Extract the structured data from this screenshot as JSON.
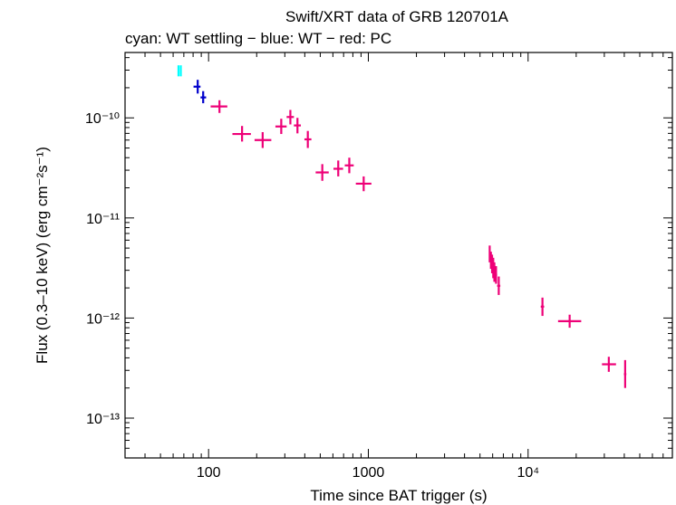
{
  "chart_data": {
    "type": "scatter",
    "title": "Swift/XRT data of GRB 120701A",
    "subtitle": "cyan: WT settling − blue: WT − red: PC",
    "xlabel": "Time since BAT trigger (s)",
    "ylabel": "Flux (0.3–10 keV) (erg cm⁻²s⁻¹)",
    "xscale": "log",
    "yscale": "log",
    "xlim": [
      30,
      80000
    ],
    "ylim": [
      4e-14,
      4.5e-10
    ],
    "x_ticks": [
      {
        "value": 100,
        "label": "100"
      },
      {
        "value": 1000,
        "label": "1000"
      },
      {
        "value": 10000,
        "label": "10⁴"
      }
    ],
    "y_ticks": [
      {
        "value": 1e-10,
        "label": "10⁻¹⁰"
      },
      {
        "value": 1e-11,
        "label": "10⁻¹¹"
      },
      {
        "value": 1e-12,
        "label": "10⁻¹²"
      },
      {
        "value": 1e-13,
        "label": "10⁻¹³"
      }
    ],
    "grid": false,
    "series": [
      {
        "name": "WT settling",
        "color": "#00ffff",
        "points": [
          {
            "x": 64.8,
            "xlo": 64.0,
            "xhi": 65.6,
            "y": 2.95e-10,
            "ylo": 2.6e-10,
            "yhi": 3.35e-10
          },
          {
            "x": 67.0,
            "xlo": 66.2,
            "xhi": 67.8,
            "y": 2.95e-10,
            "ylo": 2.6e-10,
            "yhi": 3.35e-10
          }
        ]
      },
      {
        "name": "WT",
        "color": "#0000cc",
        "points": [
          {
            "x": 85.5,
            "xlo": 80.5,
            "xhi": 89.0,
            "y": 2.05e-10,
            "ylo": 1.75e-10,
            "yhi": 2.4e-10
          },
          {
            "x": 92.5,
            "xlo": 89.0,
            "xhi": 96.5,
            "y": 1.6e-10,
            "ylo": 1.4e-10,
            "yhi": 1.85e-10
          }
        ]
      },
      {
        "name": "PC",
        "color": "#ee0077",
        "points": [
          {
            "x": 117,
            "xlo": 103,
            "xhi": 131,
            "y": 1.3e-10,
            "ylo": 1.12e-10,
            "yhi": 1.5e-10
          },
          {
            "x": 162,
            "xlo": 141,
            "xhi": 184,
            "y": 6.9e-11,
            "ylo": 5.8e-11,
            "yhi": 8.3e-11
          },
          {
            "x": 218,
            "xlo": 194,
            "xhi": 247,
            "y": 6e-11,
            "ylo": 5e-11,
            "yhi": 7.2e-11
          },
          {
            "x": 285,
            "xlo": 262,
            "xhi": 308,
            "y": 8.2e-11,
            "ylo": 6.9e-11,
            "yhi": 9.8e-11
          },
          {
            "x": 325,
            "xlo": 308,
            "xhi": 342,
            "y": 1.02e-10,
            "ylo": 8.6e-11,
            "yhi": 1.2e-10
          },
          {
            "x": 360,
            "xlo": 342,
            "xhi": 378,
            "y": 8.4e-11,
            "ylo": 7e-11,
            "yhi": 1e-10
          },
          {
            "x": 418,
            "xlo": 398,
            "xhi": 440,
            "y": 6.1e-11,
            "ylo": 5e-11,
            "yhi": 7.4e-11
          },
          {
            "x": 515,
            "xlo": 468,
            "xhi": 565,
            "y": 2.85e-11,
            "ylo": 2.35e-11,
            "yhi": 3.45e-11
          },
          {
            "x": 648,
            "xlo": 605,
            "xhi": 695,
            "y": 3.1e-11,
            "ylo": 2.6e-11,
            "yhi": 3.75e-11
          },
          {
            "x": 760,
            "xlo": 712,
            "xhi": 810,
            "y": 3.35e-11,
            "ylo": 2.8e-11,
            "yhi": 4e-11
          },
          {
            "x": 935,
            "xlo": 835,
            "xhi": 1045,
            "y": 2.2e-11,
            "ylo": 1.85e-11,
            "yhi": 2.6e-11
          },
          {
            "x": 5750,
            "xlo": 5700,
            "xhi": 5800,
            "y": 4.4e-12,
            "ylo": 3.6e-12,
            "yhi": 5.3e-12
          },
          {
            "x": 5850,
            "xlo": 5800,
            "xhi": 5900,
            "y": 3.8e-12,
            "ylo": 3.1e-12,
            "yhi": 4.6e-12
          },
          {
            "x": 5950,
            "xlo": 5900,
            "xhi": 6000,
            "y": 3.5e-12,
            "ylo": 2.8e-12,
            "yhi": 4.3e-12
          },
          {
            "x": 6050,
            "xlo": 6000,
            "xhi": 6100,
            "y": 3.2e-12,
            "ylo": 2.5e-12,
            "yhi": 4e-12
          },
          {
            "x": 6150,
            "xlo": 6100,
            "xhi": 6200,
            "y": 2.9e-12,
            "ylo": 2.3e-12,
            "yhi": 3.6e-12
          },
          {
            "x": 6300,
            "xlo": 6200,
            "xhi": 6400,
            "y": 2.7e-12,
            "ylo": 2.2e-12,
            "yhi": 3.3e-12
          },
          {
            "x": 6550,
            "xlo": 6400,
            "xhi": 6700,
            "y": 2.1e-12,
            "ylo": 1.7e-12,
            "yhi": 2.6e-12
          },
          {
            "x": 12300,
            "xlo": 12000,
            "xhi": 12600,
            "y": 1.3e-12,
            "ylo": 1.05e-12,
            "yhi": 1.6e-12
          },
          {
            "x": 18200,
            "xlo": 15400,
            "xhi": 21500,
            "y": 9.3e-13,
            "ylo": 8e-13,
            "yhi": 1.08e-12
          },
          {
            "x": 32000,
            "xlo": 29000,
            "xhi": 35500,
            "y": 3.45e-13,
            "ylo": 2.9e-13,
            "yhi": 4.1e-13
          },
          {
            "x": 40500,
            "xlo": 39800,
            "xhi": 41200,
            "y": 2.75e-13,
            "ylo": 2e-13,
            "yhi": 3.8e-13
          }
        ]
      }
    ]
  }
}
